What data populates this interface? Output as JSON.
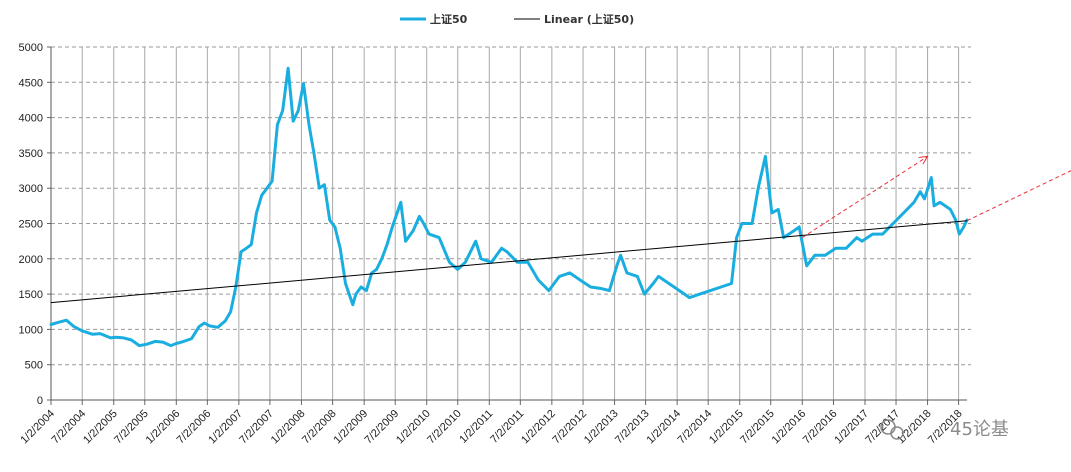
{
  "chart_data": {
    "type": "line",
    "ylim": [
      0,
      5000
    ],
    "y_ticks": [
      0,
      500,
      1000,
      1500,
      2000,
      2500,
      3000,
      3500,
      4000,
      4500,
      5000
    ],
    "x_ticks": [
      "1/2/2004",
      "7/2/2004",
      "1/2/2005",
      "7/2/2005",
      "1/2/2006",
      "7/2/2006",
      "1/2/2007",
      "7/2/2007",
      "1/2/2008",
      "7/2/2008",
      "1/2/2009",
      "7/2/2009",
      "1/2/2010",
      "7/2/2010",
      "1/2/2011",
      "7/2/2011",
      "1/2/2012",
      "7/2/2012",
      "1/2/2013",
      "7/2/2013",
      "1/2/2014",
      "7/2/2014",
      "1/2/2015",
      "7/2/2015",
      "1/2/2016",
      "7/2/2016",
      "1/2/2017",
      "7/2/2017",
      "1/2/2018",
      "7/2/2018"
    ],
    "x_range": [
      "2004-01-02",
      "2018-08-20"
    ],
    "grid": "dashed-horizontal, solid-vertical",
    "legend_position": "top-center",
    "legend": [
      "上证50",
      "Linear (上证50)"
    ],
    "series": [
      {
        "name": "上证50",
        "color": "#1aaee0",
        "points": [
          [
            "2004-01-02",
            1070
          ],
          [
            "2004-02-15",
            1100
          ],
          [
            "2004-04-01",
            1130
          ],
          [
            "2004-05-15",
            1040
          ],
          [
            "2004-07-01",
            980
          ],
          [
            "2004-09-01",
            930
          ],
          [
            "2004-10-15",
            940
          ],
          [
            "2004-12-15",
            880
          ],
          [
            "2005-01-15",
            890
          ],
          [
            "2005-03-01",
            880
          ],
          [
            "2005-04-15",
            850
          ],
          [
            "2005-06-01",
            770
          ],
          [
            "2005-07-15",
            790
          ],
          [
            "2005-09-01",
            830
          ],
          [
            "2005-10-15",
            820
          ],
          [
            "2005-12-01",
            770
          ],
          [
            "2006-01-02",
            800
          ],
          [
            "2006-02-15",
            830
          ],
          [
            "2006-04-01",
            870
          ],
          [
            "2006-05-15",
            1040
          ],
          [
            "2006-06-15",
            1090
          ],
          [
            "2006-07-15",
            1050
          ],
          [
            "2006-09-01",
            1030
          ],
          [
            "2006-10-15",
            1120
          ],
          [
            "2006-11-15",
            1250
          ],
          [
            "2006-12-15",
            1600
          ],
          [
            "2007-01-15",
            2100
          ],
          [
            "2007-02-15",
            2150
          ],
          [
            "2007-03-15",
            2200
          ],
          [
            "2007-04-15",
            2650
          ],
          [
            "2007-05-15",
            2900
          ],
          [
            "2007-06-15",
            3000
          ],
          [
            "2007-07-15",
            3100
          ],
          [
            "2007-08-15",
            3900
          ],
          [
            "2007-09-15",
            4100
          ],
          [
            "2007-10-16",
            4700
          ],
          [
            "2007-11-15",
            3950
          ],
          [
            "2007-12-15",
            4100
          ],
          [
            "2008-01-14",
            4480
          ],
          [
            "2008-02-15",
            3900
          ],
          [
            "2008-03-15",
            3500
          ],
          [
            "2008-04-15",
            3000
          ],
          [
            "2008-05-15",
            3050
          ],
          [
            "2008-06-15",
            2550
          ],
          [
            "2008-07-15",
            2450
          ],
          [
            "2008-08-15",
            2150
          ],
          [
            "2008-09-15",
            1650
          ],
          [
            "2008-10-28",
            1350
          ],
          [
            "2008-11-15",
            1500
          ],
          [
            "2008-12-15",
            1600
          ],
          [
            "2009-01-15",
            1550
          ],
          [
            "2009-02-15",
            1800
          ],
          [
            "2009-03-15",
            1850
          ],
          [
            "2009-04-15",
            2000
          ],
          [
            "2009-05-15",
            2200
          ],
          [
            "2009-06-15",
            2450
          ],
          [
            "2009-08-04",
            2800
          ],
          [
            "2009-09-01",
            2250
          ],
          [
            "2009-10-15",
            2400
          ],
          [
            "2009-11-20",
            2600
          ],
          [
            "2009-12-15",
            2500
          ],
          [
            "2010-01-15",
            2350
          ],
          [
            "2010-03-15",
            2300
          ],
          [
            "2010-05-15",
            1950
          ],
          [
            "2010-07-01",
            1850
          ],
          [
            "2010-08-15",
            1950
          ],
          [
            "2010-10-15",
            2250
          ],
          [
            "2010-11-15",
            2000
          ],
          [
            "2011-01-15",
            1950
          ],
          [
            "2011-03-15",
            2150
          ],
          [
            "2011-04-15",
            2100
          ],
          [
            "2011-06-15",
            1950
          ],
          [
            "2011-08-15",
            1950
          ],
          [
            "2011-10-15",
            1700
          ],
          [
            "2011-12-15",
            1550
          ],
          [
            "2012-02-15",
            1750
          ],
          [
            "2012-04-15",
            1800
          ],
          [
            "2012-06-15",
            1700
          ],
          [
            "2012-08-15",
            1600
          ],
          [
            "2012-10-15",
            1580
          ],
          [
            "2012-12-03",
            1550
          ],
          [
            "2013-01-15",
            1900
          ],
          [
            "2013-02-06",
            2050
          ],
          [
            "2013-03-15",
            1800
          ],
          [
            "2013-05-15",
            1750
          ],
          [
            "2013-06-25",
            1500
          ],
          [
            "2013-08-15",
            1650
          ],
          [
            "2013-09-15",
            1750
          ],
          [
            "2013-11-15",
            1650
          ],
          [
            "2014-01-15",
            1550
          ],
          [
            "2014-03-15",
            1450
          ],
          [
            "2014-05-15",
            1500
          ],
          [
            "2014-07-15",
            1550
          ],
          [
            "2014-09-15",
            1600
          ],
          [
            "2014-11-15",
            1650
          ],
          [
            "2014-12-15",
            2300
          ],
          [
            "2015-01-15",
            2500
          ],
          [
            "2015-03-15",
            2500
          ],
          [
            "2015-04-20",
            3000
          ],
          [
            "2015-06-01",
            3450
          ],
          [
            "2015-07-08",
            2650
          ],
          [
            "2015-08-15",
            2700
          ],
          [
            "2015-09-15",
            2300
          ],
          [
            "2015-11-15",
            2400
          ],
          [
            "2015-12-15",
            2450
          ],
          [
            "2016-01-28",
            1900
          ],
          [
            "2016-03-15",
            2050
          ],
          [
            "2016-05-15",
            2050
          ],
          [
            "2016-07-15",
            2150
          ],
          [
            "2016-09-15",
            2150
          ],
          [
            "2016-11-15",
            2300
          ],
          [
            "2016-12-15",
            2250
          ],
          [
            "2017-02-15",
            2350
          ],
          [
            "2017-04-15",
            2350
          ],
          [
            "2017-06-15",
            2500
          ],
          [
            "2017-08-15",
            2650
          ],
          [
            "2017-10-15",
            2800
          ],
          [
            "2017-11-20",
            2950
          ],
          [
            "2017-12-15",
            2850
          ],
          [
            "2018-01-24",
            3150
          ],
          [
            "2018-02-09",
            2750
          ],
          [
            "2018-03-15",
            2800
          ],
          [
            "2018-05-15",
            2700
          ],
          [
            "2018-06-15",
            2550
          ],
          [
            "2018-07-06",
            2350
          ],
          [
            "2018-08-01",
            2450
          ],
          [
            "2018-08-20",
            2550
          ]
        ]
      },
      {
        "name": "Linear (上证50)",
        "color": "#000000",
        "points": [
          [
            "2004-01-02",
            1380
          ],
          [
            "2018-08-20",
            2540
          ]
        ]
      }
    ],
    "annotations": [
      {
        "type": "arrow",
        "color": "#e8303a",
        "style": "dashed",
        "from": [
          "2016-01-02",
          2300
        ],
        "to": [
          "2018-01-02",
          3450
        ]
      },
      {
        "type": "arrow",
        "color": "#e8303a",
        "style": "dashed",
        "from": [
          "2018-08-20",
          2540
        ],
        "to": [
          "2021-01-01",
          3550
        ]
      }
    ]
  },
  "watermark": {
    "icon": "wechat-icon",
    "text": "45论基"
  }
}
